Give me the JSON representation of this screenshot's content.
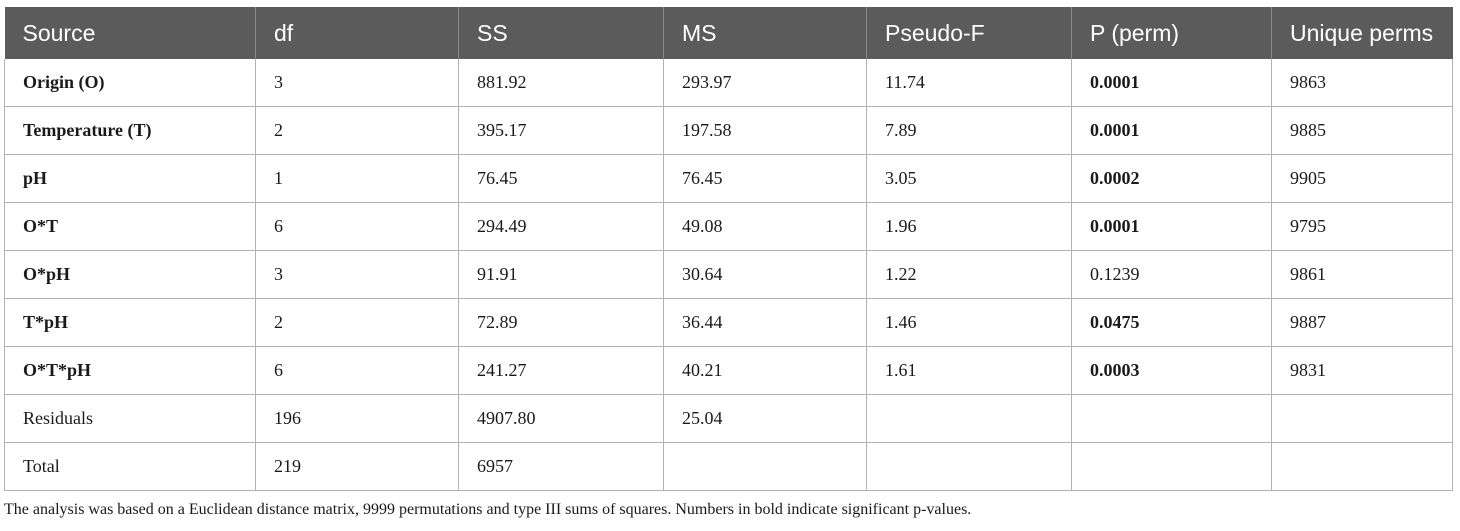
{
  "table": {
    "headers": [
      "Source",
      "df",
      "SS",
      "MS",
      "Pseudo-F",
      "P (perm)",
      "Unique perms"
    ],
    "rows": [
      {
        "source": "Origin (O)",
        "source_bold": true,
        "df": "3",
        "ss": "881.92",
        "ms": "293.97",
        "pseudo_f": "11.74",
        "p_perm": "0.0001",
        "p_bold": true,
        "unique_perms": "9863"
      },
      {
        "source": "Temperature (T)",
        "source_bold": true,
        "df": "2",
        "ss": "395.17",
        "ms": "197.58",
        "pseudo_f": "7.89",
        "p_perm": "0.0001",
        "p_bold": true,
        "unique_perms": "9885"
      },
      {
        "source": "pH",
        "source_bold": true,
        "df": "1",
        "ss": "76.45",
        "ms": "76.45",
        "pseudo_f": "3.05",
        "p_perm": "0.0002",
        "p_bold": true,
        "unique_perms": "9905"
      },
      {
        "source": "O*T",
        "source_bold": true,
        "df": "6",
        "ss": "294.49",
        "ms": "49.08",
        "pseudo_f": "1.96",
        "p_perm": "0.0001",
        "p_bold": true,
        "unique_perms": "9795"
      },
      {
        "source": "O*pH",
        "source_bold": true,
        "df": "3",
        "ss": "91.91",
        "ms": "30.64",
        "pseudo_f": "1.22",
        "p_perm": "0.1239",
        "p_bold": false,
        "unique_perms": "9861"
      },
      {
        "source": "T*pH",
        "source_bold": true,
        "df": "2",
        "ss": "72.89",
        "ms": "36.44",
        "pseudo_f": "1.46",
        "p_perm": "0.0475",
        "p_bold": true,
        "unique_perms": "9887"
      },
      {
        "source": "O*T*pH",
        "source_bold": true,
        "df": "6",
        "ss": "241.27",
        "ms": "40.21",
        "pseudo_f": "1.61",
        "p_perm": "0.0003",
        "p_bold": true,
        "unique_perms": "9831"
      },
      {
        "source": "Residuals",
        "source_bold": false,
        "df": "196",
        "ss": "4907.80",
        "ms": "25.04",
        "pseudo_f": "",
        "p_perm": "",
        "p_bold": false,
        "unique_perms": ""
      },
      {
        "source": "Total",
        "source_bold": false,
        "df": "219",
        "ss": "6957",
        "ms": "",
        "pseudo_f": "",
        "p_perm": "",
        "p_bold": false,
        "unique_perms": ""
      }
    ]
  },
  "caption": "The analysis was based on a Euclidean distance matrix, 9999 permutations and type III sums of squares. Numbers in bold indicate significant p-values."
}
